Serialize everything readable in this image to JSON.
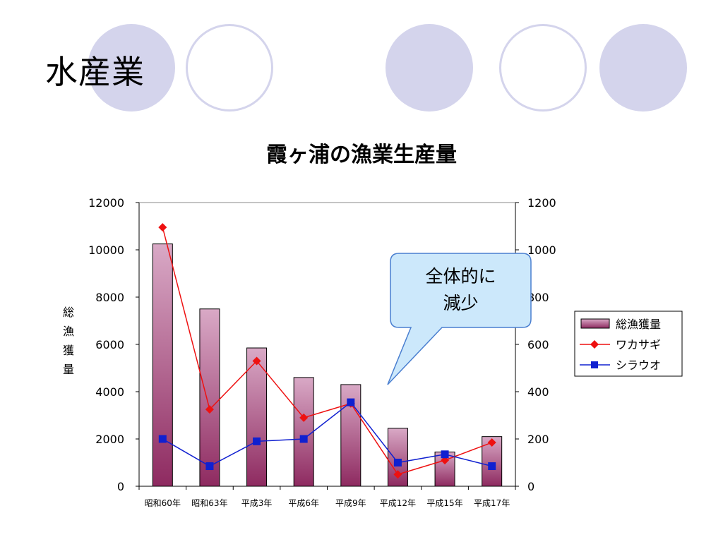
{
  "slide": {
    "title": "水産業"
  },
  "colors": {
    "decor": "#d4d4ec",
    "bar_top": "#d9a9c6",
    "bar_bottom": "#8e2a60",
    "wakasagi": "#ee1111",
    "shirauo": "#1020d0",
    "callout_fill": "#cce8fb",
    "callout_stroke": "#4a7fd0"
  },
  "callout": {
    "lines": [
      "全体的に",
      "減少"
    ]
  },
  "chart_data": {
    "type": "bar",
    "title": "霞ヶ浦の漁業生産量",
    "categories": [
      "昭和60年",
      "昭和63年",
      "平成3年",
      "平成6年",
      "平成9年",
      "平成12年",
      "平成15年",
      "平成17年"
    ],
    "ylabel": "総漁獲量",
    "ylim": [
      0,
      12000
    ],
    "yticks": [
      0,
      2000,
      4000,
      6000,
      8000,
      10000,
      12000
    ],
    "y2lim": [
      0,
      1200
    ],
    "y2ticks": [
      0,
      200,
      400,
      600,
      800,
      1000,
      1200
    ],
    "legend_position": "right",
    "grid": false,
    "series": [
      {
        "name": "総漁獲量",
        "type": "bar",
        "axis": "left",
        "values": [
          10250,
          7500,
          5850,
          4600,
          4300,
          2450,
          1450,
          2100
        ]
      },
      {
        "name": "ワカサギ",
        "type": "line",
        "axis": "right",
        "marker": "diamond",
        "values": [
          1095,
          325,
          530,
          290,
          350,
          50,
          110,
          185
        ]
      },
      {
        "name": "シラウオ",
        "type": "line",
        "axis": "right",
        "marker": "square",
        "values": [
          200,
          85,
          190,
          200,
          355,
          100,
          135,
          85
        ]
      }
    ]
  }
}
